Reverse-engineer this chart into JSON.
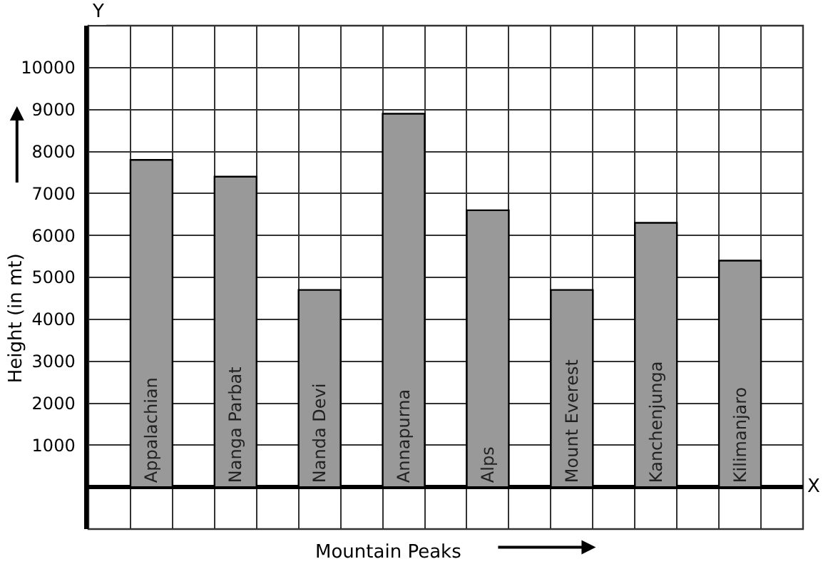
{
  "chart_data": {
    "type": "bar",
    "xlabel": "Mountain Peaks",
    "ylabel": "Height (in mt)",
    "categories": [
      "Appalachian",
      "Nanga Parbat",
      "Nanda Devi",
      "Annapurna",
      "Alps",
      "Mount Everest",
      "Kanchenjunga",
      "Kilimanjaro"
    ],
    "values": [
      7800,
      7400,
      4700,
      8900,
      6600,
      4700,
      6300,
      5400
    ],
    "color": "#999999",
    "ylim": [
      -1000,
      11000
    ],
    "yticks": [
      {
        "value": 0,
        "label": null
      },
      1000,
      2000,
      3000,
      4000,
      5000,
      6000,
      7000,
      8000,
      9000,
      10000
    ],
    "annotations": [
      "X",
      "Y"
    ],
    "grid": true,
    "tick_labels": "y"
  }
}
